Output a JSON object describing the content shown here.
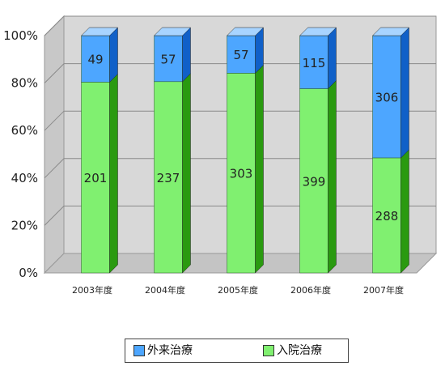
{
  "chart_data": {
    "type": "bar",
    "stacked": "percent",
    "categories": [
      "2003年度",
      "2004年度",
      "2005年度",
      "2006年度",
      "2007年度"
    ],
    "series": [
      {
        "name": "入院治療",
        "values": [
          201,
          237,
          303,
          399,
          288
        ],
        "color": "#80f070",
        "side_color": "#2a9a10",
        "top_color": "#b8f8a8"
      },
      {
        "name": "外来治療",
        "values": [
          49,
          57,
          57,
          115,
          306
        ],
        "color": "#4da6ff",
        "side_color": "#1060c8",
        "top_color": "#a8d4ff"
      }
    ],
    "yticks": [
      "0%",
      "20%",
      "40%",
      "60%",
      "80%",
      "100%"
    ],
    "ylim": [
      0,
      100
    ],
    "grid": true,
    "legend_position": "bottom"
  }
}
